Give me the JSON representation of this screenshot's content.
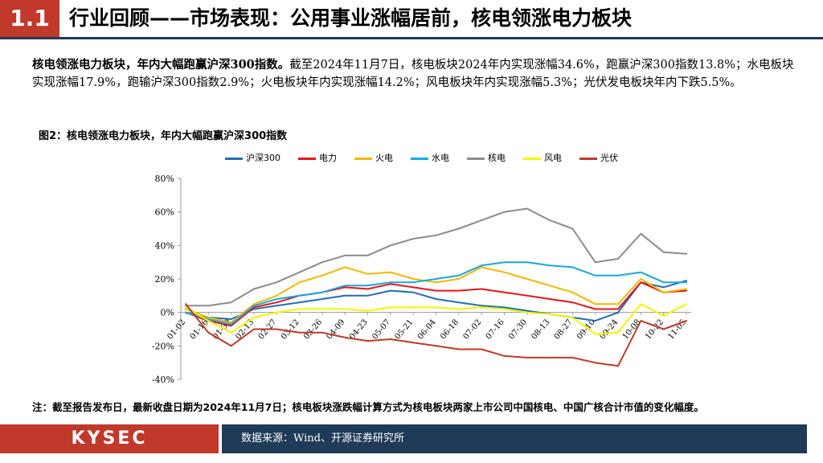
{
  "header": {
    "section_number": "1.1",
    "title": "行业回顾——市场表现：公用事业涨幅居前，核电领涨电力板块"
  },
  "summary": {
    "lead": "核电领涨电力板块，年内大幅跑赢沪深300指数。",
    "body": "截至2024年11月7日，核电板块2024年内实现涨幅34.6%，跑赢沪深300指数13.8%；水电板块实现涨幅17.9%，跑输沪深300指数2.9%；火电板块年内实现涨幅14.2%；风电板块年内实现涨幅5.3%；光伏发电板块年内下跌5.5%。"
  },
  "figure": {
    "title": "图2：核电领涨电力板块，年内大幅跑赢沪深300指数",
    "note": "注：截至报告发布日，最新收盘日期为2024年11月7日；核电板块涨跌幅计算方式为核电板块两家上市公司中国核电、中国广核合计市值的变化幅度。"
  },
  "footer": {
    "logo": "KYSEC",
    "source": "数据来源：Wind、开源证券研究所"
  },
  "chart_data": {
    "type": "line",
    "title": "",
    "xlabel": "",
    "ylabel": "",
    "ylim": [
      -40,
      80
    ],
    "yticks": [
      "80%",
      "60%",
      "40%",
      "20%",
      "0%",
      "-20%",
      "-40%"
    ],
    "ytick_values": [
      80,
      60,
      40,
      20,
      0,
      -20,
      -40
    ],
    "categories": [
      "01-02",
      "01-16",
      "01-30",
      "02-13",
      "02-27",
      "03-12",
      "03-26",
      "04-09",
      "04-23",
      "05-07",
      "05-21",
      "06-04",
      "06-18",
      "07-02",
      "07-16",
      "07-30",
      "08-13",
      "08-27",
      "09-10",
      "09-24",
      "10-08",
      "10-22",
      "11-05"
    ],
    "legend_position": "top",
    "series": [
      {
        "name": "沪深300",
        "color": "#1f6fb4",
        "values": [
          0,
          -3,
          -4,
          2,
          4,
          6,
          8,
          10,
          10,
          13,
          12,
          8,
          6,
          4,
          3,
          1,
          -1,
          -3,
          -5,
          0,
          18,
          15,
          19
        ]
      },
      {
        "name": "电力",
        "color": "#e8141b",
        "values": [
          0,
          -5,
          -8,
          3,
          6,
          10,
          12,
          15,
          14,
          17,
          15,
          13,
          13,
          14,
          12,
          10,
          8,
          6,
          2,
          2,
          18,
          12,
          13
        ]
      },
      {
        "name": "火电",
        "color": "#f5b800",
        "values": [
          2,
          -3,
          -6,
          5,
          10,
          18,
          22,
          27,
          23,
          24,
          20,
          18,
          20,
          27,
          24,
          20,
          16,
          12,
          5,
          5,
          20,
          12,
          14
        ]
      },
      {
        "name": "水电",
        "color": "#19a7e0",
        "values": [
          0,
          -4,
          -7,
          4,
          8,
          10,
          12,
          16,
          16,
          18,
          18,
          20,
          22,
          28,
          30,
          30,
          28,
          27,
          22,
          22,
          24,
          18,
          18
        ]
      },
      {
        "name": "核电",
        "color": "#8c8c8c",
        "values": [
          4,
          4,
          6,
          14,
          18,
          24,
          30,
          34,
          34,
          40,
          44,
          46,
          50,
          55,
          60,
          62,
          55,
          50,
          30,
          32,
          47,
          36,
          35
        ]
      },
      {
        "name": "风电",
        "color": "#f5f500",
        "values": [
          3,
          -5,
          -12,
          -3,
          0,
          2,
          2,
          2,
          1,
          3,
          3,
          3,
          2,
          3,
          2,
          0,
          -1,
          -3,
          -13,
          -12,
          5,
          -2,
          5
        ]
      },
      {
        "name": "光伏",
        "color": "#c0392b",
        "values": [
          5,
          -12,
          -20,
          -10,
          -10,
          -12,
          -12,
          -15,
          -17,
          -16,
          -18,
          -20,
          -22,
          -22,
          -26,
          -27,
          -27,
          -27,
          -30,
          -32,
          -5,
          -10,
          -5
        ]
      }
    ]
  }
}
